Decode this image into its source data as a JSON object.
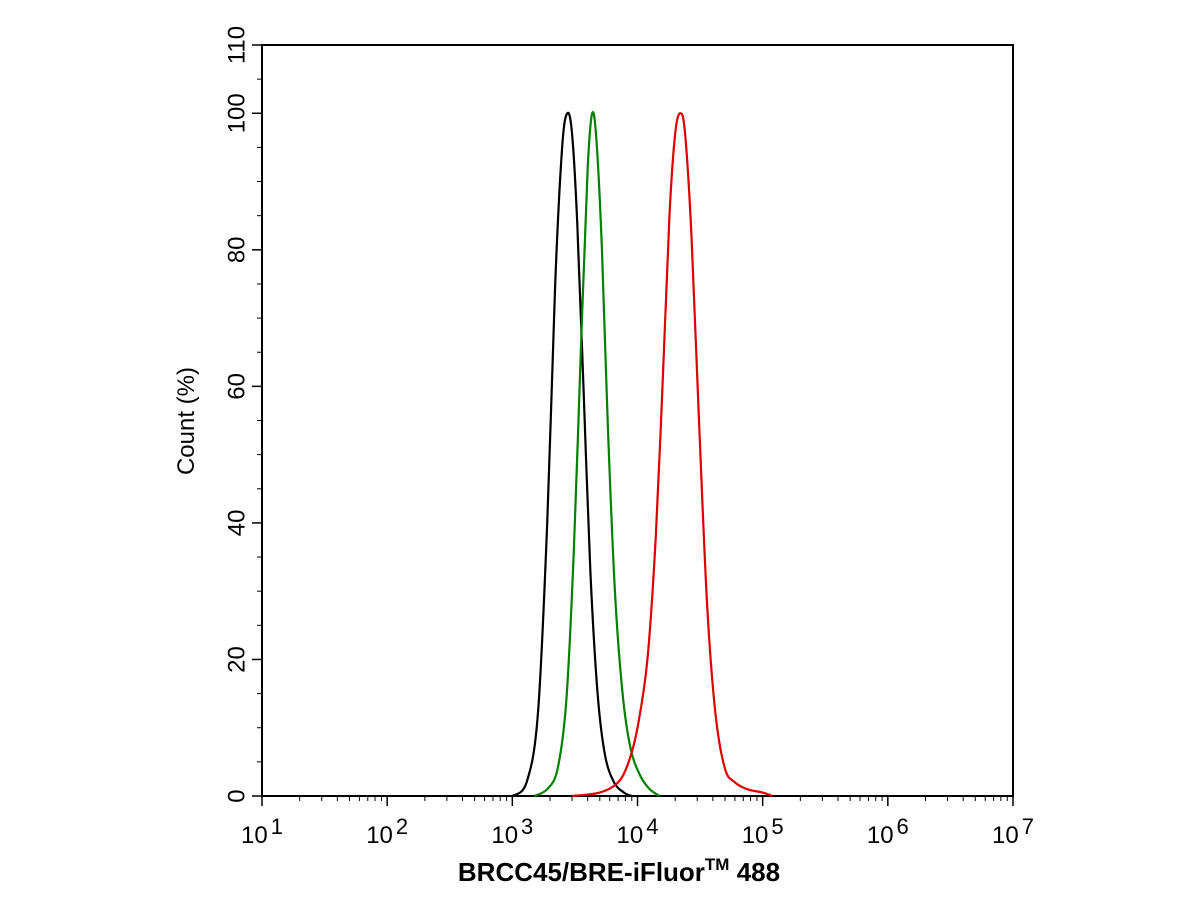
{
  "chart_data": {
    "type": "line",
    "xlabel": "BRCC45/BRE-iFluor",
    "xlabel_superscript": "TM",
    "xlabel_suffix": " 488",
    "ylabel": "Count  (%)",
    "x_scale": "log",
    "xlim": [
      10,
      10000000
    ],
    "ylim": [
      0,
      110
    ],
    "x_ticks": [
      {
        "value": 10,
        "base": "10",
        "exp": "1"
      },
      {
        "value": 100,
        "base": "10",
        "exp": "2"
      },
      {
        "value": 1000,
        "base": "10",
        "exp": "3"
      },
      {
        "value": 10000,
        "base": "10",
        "exp": "4"
      },
      {
        "value": 100000,
        "base": "10",
        "exp": "5"
      },
      {
        "value": 1000000,
        "base": "10",
        "exp": "6"
      },
      {
        "value": 10000000,
        "base": "10",
        "exp": "7"
      }
    ],
    "y_ticks": [
      0,
      20,
      40,
      60,
      80,
      100,
      110
    ],
    "grid": false,
    "legend": "none",
    "series": [
      {
        "color": "#000000",
        "x": [
          1000,
          1300,
          1600,
          1900,
          2200,
          2500,
          2750,
          3000,
          3300,
          3700,
          4200,
          4800,
          5500,
          6500,
          7800,
          9000
        ],
        "y": [
          0,
          2,
          12,
          40,
          75,
          95,
          100,
          97,
          84,
          60,
          33,
          15,
          6,
          2,
          0.5,
          0
        ]
      },
      {
        "color": "#008000",
        "x": [
          1500,
          1900,
          2300,
          2700,
          3100,
          3600,
          4000,
          4350,
          4700,
          5200,
          5800,
          6600,
          7600,
          8800,
          10500,
          12500,
          15000
        ],
        "y": [
          0,
          1,
          4,
          14,
          36,
          70,
          92,
          100,
          96,
          80,
          54,
          30,
          15,
          7,
          3,
          1,
          0
        ]
      },
      {
        "color": "#dd0000",
        "x": [
          3000,
          5000,
          7000,
          8500,
          10000,
          12000,
          14000,
          16000,
          18000,
          20000,
          22000,
          24000,
          27000,
          31000,
          36000,
          42000,
          50000,
          60000,
          75000,
          100000,
          120000
        ],
        "y": [
          0,
          0.5,
          2,
          5,
          10,
          20,
          38,
          62,
          85,
          97,
          100,
          97,
          82,
          55,
          28,
          12,
          4,
          2,
          1,
          0.5,
          0
        ]
      }
    ]
  }
}
